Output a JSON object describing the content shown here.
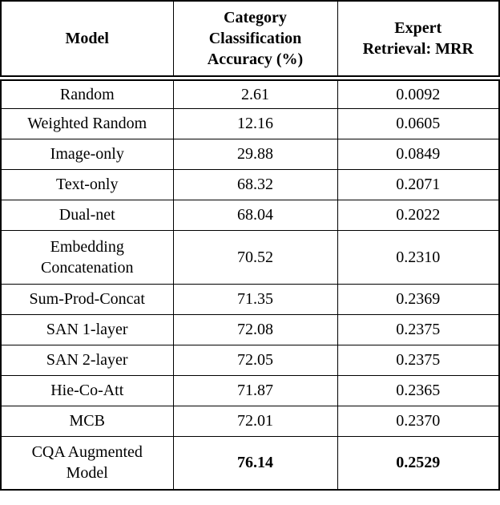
{
  "table": {
    "headers": [
      "Model",
      "Category\nClassification\nAccuracy (%)",
      "Expert\nRetrieval: MRR"
    ],
    "rows": [
      {
        "model": "Random",
        "accuracy": "2.61",
        "mrr": "0.0092"
      },
      {
        "model": "Weighted Random",
        "accuracy": "12.16",
        "mrr": "0.0605"
      },
      {
        "model": "Image-only",
        "accuracy": "29.88",
        "mrr": "0.0849"
      },
      {
        "model": "Text-only",
        "accuracy": "68.32",
        "mrr": "0.2071"
      },
      {
        "model": "Dual-net",
        "accuracy": "68.04",
        "mrr": "0.2022"
      },
      {
        "model": "Embedding\nConcatenation",
        "accuracy": "70.52",
        "mrr": "0.2310"
      },
      {
        "model": "Sum-Prod-Concat",
        "accuracy": "71.35",
        "mrr": "0.2369"
      },
      {
        "model": "SAN 1-layer",
        "accuracy": "72.08",
        "mrr": "0.2375"
      },
      {
        "model": "SAN 2-layer",
        "accuracy": "72.05",
        "mrr": "0.2375"
      },
      {
        "model": "Hie-Co-Att",
        "accuracy": "71.87",
        "mrr": "0.2365"
      },
      {
        "model": "MCB",
        "accuracy": "72.01",
        "mrr": "0.2370"
      },
      {
        "model": "CQA Augmented\nModel",
        "accuracy": "76.14",
        "mrr": "0.2529"
      }
    ],
    "colors": {
      "text": "#000000",
      "border": "#000000",
      "background": "#ffffff"
    }
  },
  "chart_data": {
    "type": "table",
    "title": "",
    "columns": [
      "Model",
      "Category Classification Accuracy (%)",
      "Expert Retrieval: MRR"
    ],
    "rows": [
      [
        "Random",
        2.61,
        0.0092
      ],
      [
        "Weighted Random",
        12.16,
        0.0605
      ],
      [
        "Image-only",
        29.88,
        0.0849
      ],
      [
        "Text-only",
        68.32,
        0.2071
      ],
      [
        "Dual-net",
        68.04,
        0.2022
      ],
      [
        "Embedding Concatenation",
        70.52,
        0.231
      ],
      [
        "Sum-Prod-Concat",
        71.35,
        0.2369
      ],
      [
        "SAN 1-layer",
        72.08,
        0.2375
      ],
      [
        "SAN 2-layer",
        72.05,
        0.2375
      ],
      [
        "Hie-Co-Att",
        71.87,
        0.2365
      ],
      [
        "MCB",
        72.01,
        0.237
      ],
      [
        "CQA Augmented Model",
        76.14,
        0.2529
      ]
    ],
    "best_row": "CQA Augmented Model",
    "best_values_bold": true
  }
}
